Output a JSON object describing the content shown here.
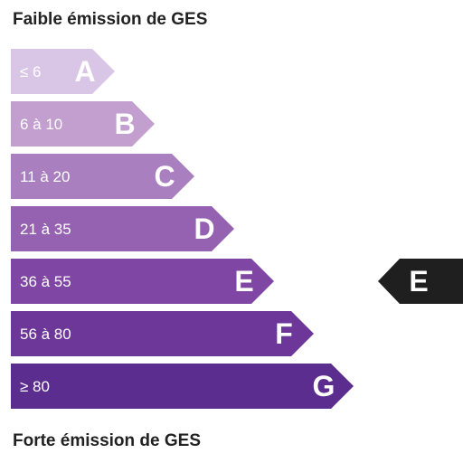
{
  "header": {
    "top_label": "Faible émission de GES"
  },
  "footer": {
    "bottom_label": "Forte émission de GES"
  },
  "chart_data": {
    "type": "bar",
    "categories": [
      "A",
      "B",
      "C",
      "D",
      "E",
      "F",
      "G"
    ],
    "ranges": [
      "≤ 6",
      "6 à 10",
      "11 à 20",
      "21 à 35",
      "36 à 55",
      "56 à 80",
      "≥ 80"
    ],
    "colors": [
      "#d9c6e6",
      "#c39fd0",
      "#a97fc0",
      "#9562b1",
      "#7f47a3",
      "#6d3799",
      "#5a2d8f"
    ],
    "current_class": "E",
    "marker_color": "#1f1f1f"
  }
}
